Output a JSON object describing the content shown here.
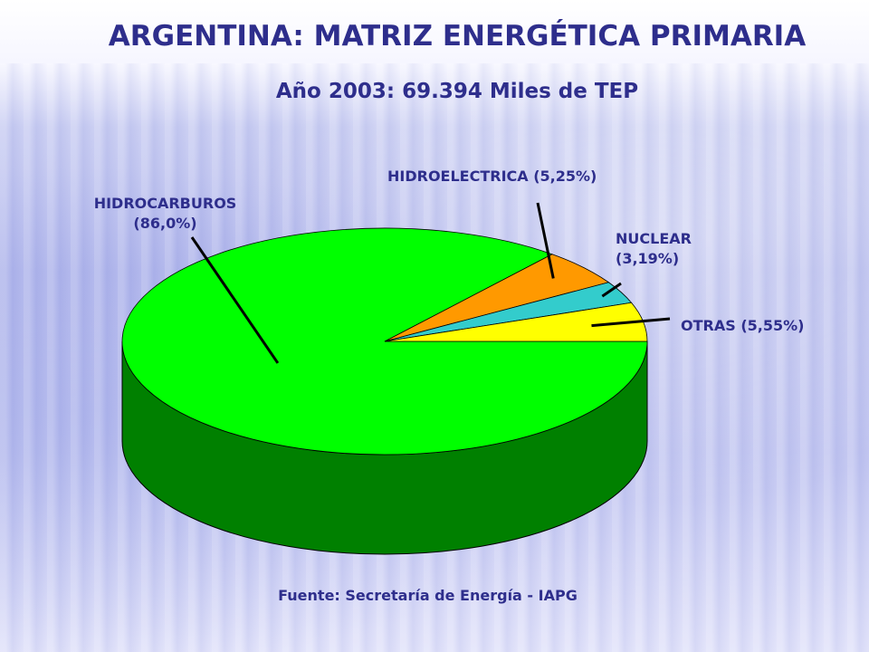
{
  "title": "ARGENTINA: MATRIZ ENERGÉTICA PRIMARIA",
  "subtitle": "Año 2003: 69.394 Miles de TEP",
  "source": "Fuente: Secretaría de Energía -  IAPG",
  "chart_data": {
    "type": "pie",
    "style": "3d",
    "labels": [
      "HIDROCARBUROS",
      "HIDROELECTRICA",
      "NUCLEAR",
      "OTRAS"
    ],
    "values": [
      86.0,
      5.25,
      3.19,
      5.55
    ],
    "colors": [
      "#00ff00",
      "#ff9900",
      "#33cccc",
      "#ffff00"
    ],
    "side_colors": [
      "#008000",
      "#b36b00",
      "#249090",
      "#b3b300"
    ],
    "label_texts": {
      "hidrocarburos_line1": "HIDROCARBUROS",
      "hidrocarburos_line2": "(86,0%)",
      "hidroelectrica": "HIDROELECTRICA (5,25%)",
      "nuclear_line1": "NUCLEAR",
      "nuclear_line2": "(3,19%)",
      "otras": "OTRAS (5,55%)"
    }
  }
}
